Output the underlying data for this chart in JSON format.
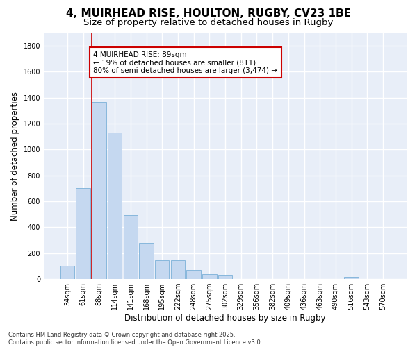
{
  "title_line1": "4, MUIRHEAD RISE, HOULTON, RUGBY, CV23 1BE",
  "title_line2": "Size of property relative to detached houses in Rugby",
  "xlabel": "Distribution of detached houses by size in Rugby",
  "ylabel": "Number of detached properties",
  "bar_color": "#c5d8f0",
  "bar_edge_color": "#7ab0d8",
  "background_color": "#e8eef8",
  "grid_color": "#ffffff",
  "fig_bg_color": "#ffffff",
  "categories": [
    "34sqm",
    "61sqm",
    "88sqm",
    "114sqm",
    "141sqm",
    "168sqm",
    "195sqm",
    "222sqm",
    "248sqm",
    "275sqm",
    "302sqm",
    "329sqm",
    "356sqm",
    "382sqm",
    "409sqm",
    "436sqm",
    "463sqm",
    "490sqm",
    "516sqm",
    "543sqm",
    "570sqm"
  ],
  "values": [
    100,
    705,
    1365,
    1130,
    495,
    278,
    145,
    145,
    68,
    38,
    35,
    0,
    0,
    0,
    0,
    0,
    0,
    0,
    18,
    0,
    0
  ],
  "ylim": [
    0,
    1900
  ],
  "yticks": [
    0,
    200,
    400,
    600,
    800,
    1000,
    1200,
    1400,
    1600,
    1800
  ],
  "property_line_bar_index": 2,
  "annotation_text": "4 MUIRHEAD RISE: 89sqm\n← 19% of detached houses are smaller (811)\n80% of semi-detached houses are larger (3,474) →",
  "annotation_box_color": "#ffffff",
  "annotation_box_edge": "#cc0000",
  "property_line_color": "#cc0000",
  "footer_text": "Contains HM Land Registry data © Crown copyright and database right 2025.\nContains public sector information licensed under the Open Government Licence v3.0.",
  "title_fontsize": 11,
  "subtitle_fontsize": 9.5,
  "axis_label_fontsize": 8.5,
  "tick_fontsize": 7,
  "annotation_fontsize": 7.5,
  "footer_fontsize": 6
}
